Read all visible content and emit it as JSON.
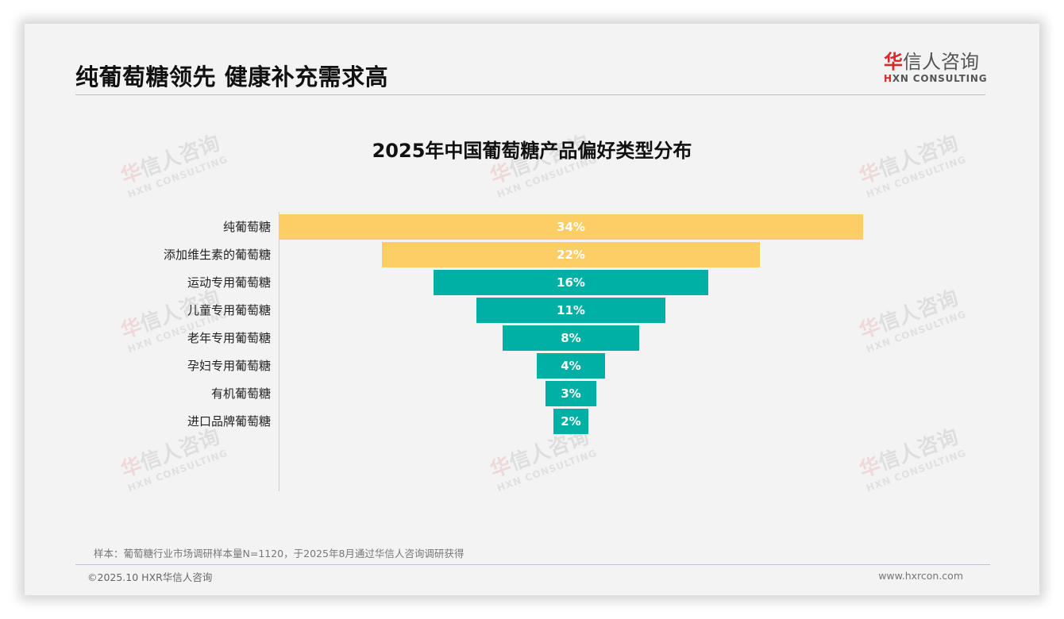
{
  "header": {
    "title": "纯葡萄糖领先 健康补充需求高",
    "logo": {
      "cn_red": "华",
      "cn_rest": "信人咨询",
      "en_mark": "H",
      "en_rest": "XN CONSULTING"
    }
  },
  "watermark": {
    "cn_red": "华",
    "cn_rest": "信人咨询",
    "en": "HXN CONSULTING"
  },
  "colors": {
    "top_bars": "#fdcd66",
    "other_bars": "#00b0a5",
    "bar_text": "#ffffff",
    "logo_red": "#d42a2a"
  },
  "chart_data": {
    "type": "bar",
    "orientation": "horizontal-funnel",
    "title": "2025年中国葡萄糖产品偏好类型分布",
    "xlabel": "",
    "ylabel": "",
    "grid": false,
    "legend": null,
    "categories": [
      "纯葡萄糖",
      "添加维生素的葡萄糖",
      "运动专用葡萄糖",
      "儿童专用葡萄糖",
      "老年专用葡萄糖",
      "孕妇专用葡萄糖",
      "有机葡萄糖",
      "进口品牌葡萄糖"
    ],
    "values": [
      34,
      22,
      16,
      11,
      8,
      4,
      3,
      2
    ],
    "unit": "%",
    "data_labels": [
      "34%",
      "22%",
      "16%",
      "11%",
      "8%",
      "4%",
      "3%",
      "2%"
    ],
    "bar_colors": [
      "#fdcd66",
      "#fdcd66",
      "#00b0a5",
      "#00b0a5",
      "#00b0a5",
      "#00b0a5",
      "#00b0a5",
      "#00b0a5"
    ]
  },
  "footer": {
    "sample_note": "样本：葡萄糖行业市场调研样本量N=1120，于2025年8月通过华信人咨询调研获得",
    "copyright": "©2025.10 HXR华信人咨询",
    "website": "www.hxrcon.com"
  }
}
